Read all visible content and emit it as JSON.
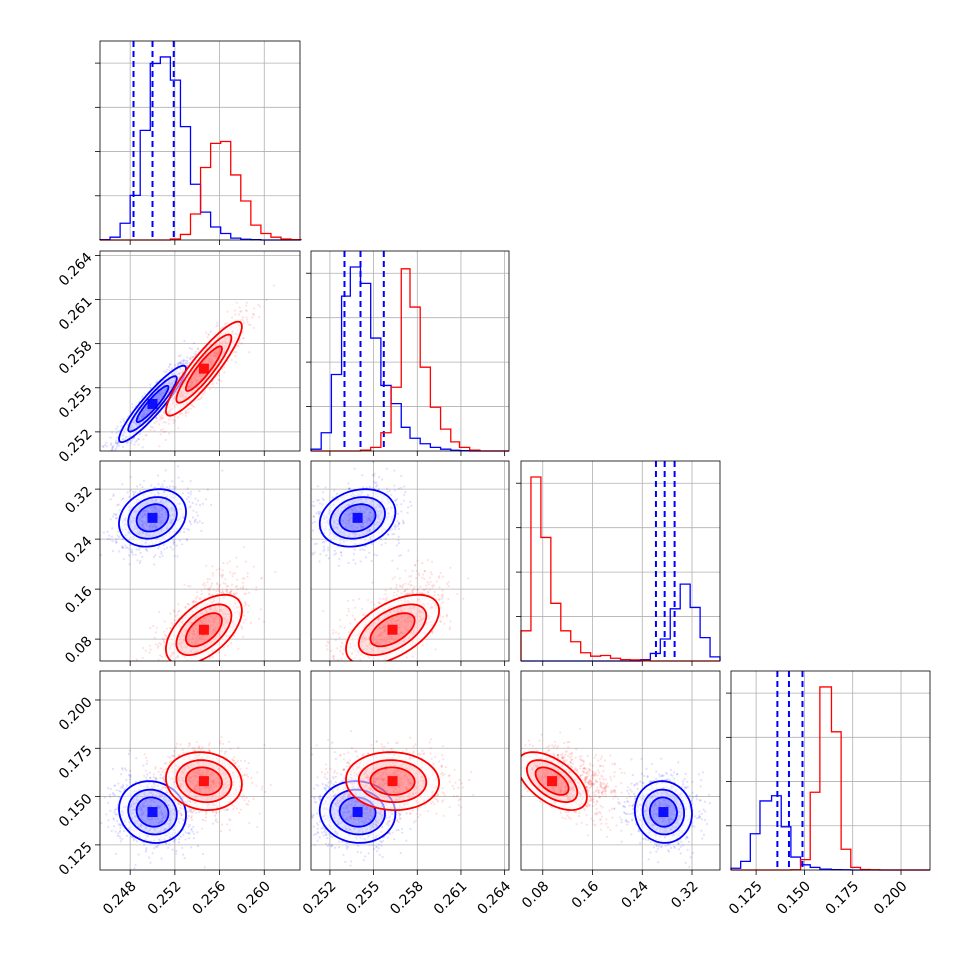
{
  "colors": {
    "sample_a": "#0000ff",
    "sample_b": "#ff0000",
    "grid": "#b0b0b0",
    "axis": "#000000"
  },
  "chart_data": {
    "type": "corner",
    "grid": true,
    "parameters": [
      {
        "range": [
          0.2453,
          0.2632
        ],
        "ticks": [
          "0.248",
          "0.252",
          "0.256",
          "0.260"
        ],
        "tick_values": [
          0.248,
          0.252,
          0.256,
          0.26
        ]
      },
      {
        "range": [
          0.2507,
          0.2643
        ],
        "ticks": [
          "0.252",
          "0.255",
          "0.258",
          "0.261",
          "0.264"
        ],
        "tick_values": [
          0.252,
          0.255,
          0.258,
          0.261,
          0.264
        ]
      },
      {
        "range": [
          0.045,
          0.365
        ],
        "ticks": [
          "0.08",
          "0.16",
          "0.24",
          "0.32"
        ],
        "tick_values": [
          0.08,
          0.16,
          0.24,
          0.32
        ]
      },
      {
        "range": [
          0.112,
          0.215
        ],
        "ticks": [
          "0.125",
          "0.150",
          "0.175",
          "0.200"
        ],
        "tick_values": [
          0.125,
          0.15,
          0.175,
          0.2
        ]
      }
    ],
    "series": [
      {
        "color": "#0000ff",
        "quantiles": [
          [
            0.2483,
            0.25,
            0.2519
          ],
          [
            0.253,
            0.2541,
            0.2557
          ],
          [
            0.262,
            0.276,
            0.292
          ],
          [
            0.136,
            0.142,
            0.149
          ]
        ],
        "means": [
          0.25,
          0.2539,
          0.274,
          0.142
        ],
        "stds": [
          0.0015,
          0.0013,
          0.023,
          0.008
        ],
        "hist_bins": [
          [
            0.2453,
            0.2462,
            0.2471,
            0.248,
            0.2489,
            0.2498,
            0.2507,
            0.2516,
            0.2525,
            0.2534,
            0.2543,
            0.2552,
            0.2561,
            0.257,
            0.2579,
            0.2588,
            0.2597,
            0.2606,
            0.2615,
            0.2624,
            0.2633
          ],
          [
            0.2507,
            0.2514,
            0.2521,
            0.2528,
            0.2534,
            0.2541,
            0.2548,
            0.2555,
            0.2562,
            0.2569,
            0.2575,
            0.2582,
            0.2589,
            0.2596,
            0.2603,
            0.2609,
            0.2616,
            0.2623,
            0.263,
            0.2637,
            0.2643
          ],
          [
            0.045,
            0.061,
            0.077,
            0.093,
            0.109,
            0.125,
            0.141,
            0.157,
            0.173,
            0.189,
            0.205,
            0.221,
            0.237,
            0.253,
            0.269,
            0.285,
            0.301,
            0.317,
            0.333,
            0.349,
            0.365
          ],
          [
            0.112,
            0.117,
            0.122,
            0.127,
            0.133,
            0.138,
            0.143,
            0.148,
            0.153,
            0.158,
            0.164,
            0.169,
            0.174,
            0.179,
            0.184,
            0.189,
            0.195,
            0.2,
            0.205,
            0.21,
            0.215
          ]
        ],
        "hist_counts": [
          [
            2,
            15,
            90,
            240,
            590,
            950,
            985,
            860,
            610,
            300,
            150,
            70,
            35,
            10,
            4,
            2,
            0,
            0,
            0,
            0
          ],
          [
            10,
            100,
            420,
            850,
            1010,
            920,
            620,
            360,
            260,
            130,
            70,
            40,
            20,
            10,
            4,
            2,
            0,
            0,
            0,
            0
          ],
          [
            0,
            0,
            0,
            0,
            0,
            0,
            0,
            0,
            0,
            0,
            0,
            0,
            10,
            55,
            160,
            380,
            560,
            390,
            170,
            30
          ],
          [
            10,
            50,
            210,
            400,
            430,
            250,
            75,
            30,
            15,
            5,
            2,
            1,
            0,
            0,
            0,
            0,
            0,
            0,
            0,
            0
          ]
        ]
      },
      {
        "color": "#ff0000",
        "quantiles": null,
        "means": [
          0.2546,
          0.2563,
          0.095,
          0.158
        ],
        "stds": [
          0.0017,
          0.0016,
          0.028,
          0.0075
        ],
        "hist_bins": [
          [
            0.2453,
            0.2462,
            0.2471,
            0.248,
            0.2489,
            0.2498,
            0.2507,
            0.2516,
            0.2525,
            0.2534,
            0.2543,
            0.2552,
            0.2561,
            0.257,
            0.2579,
            0.2588,
            0.2597,
            0.2606,
            0.2615,
            0.2624,
            0.2633
          ],
          [
            0.2507,
            0.2514,
            0.2521,
            0.2528,
            0.2534,
            0.2541,
            0.2548,
            0.2555,
            0.2562,
            0.2569,
            0.2575,
            0.2582,
            0.2589,
            0.2596,
            0.2603,
            0.2609,
            0.2616,
            0.2623,
            0.263,
            0.2637,
            0.2643
          ],
          [
            0.045,
            0.061,
            0.077,
            0.093,
            0.109,
            0.125,
            0.141,
            0.157,
            0.173,
            0.189,
            0.205,
            0.221,
            0.237,
            0.253,
            0.269,
            0.285,
            0.301,
            0.317,
            0.333,
            0.349,
            0.365
          ],
          [
            0.112,
            0.117,
            0.122,
            0.127,
            0.133,
            0.138,
            0.143,
            0.148,
            0.153,
            0.158,
            0.164,
            0.169,
            0.174,
            0.179,
            0.184,
            0.189,
            0.195,
            0.2,
            0.205,
            0.21,
            0.215
          ]
        ],
        "hist_counts": [
          [
            0,
            0,
            0,
            0,
            0,
            0,
            0,
            5,
            30,
            140,
            390,
            520,
            530,
            350,
            210,
            80,
            35,
            15,
            5,
            2
          ],
          [
            0,
            0,
            0,
            0,
            0,
            5,
            20,
            100,
            350,
            1000,
            790,
            460,
            240,
            120,
            50,
            20,
            5,
            0,
            0,
            0
          ],
          [
            220,
            1340,
            900,
            420,
            220,
            140,
            60,
            35,
            40,
            20,
            10,
            8,
            5,
            0,
            0,
            0,
            0,
            0,
            0,
            0
          ],
          [
            0,
            0,
            0,
            0,
            0,
            0,
            1,
            60,
            450,
            1060,
            800,
            120,
            15,
            3,
            1,
            0,
            0,
            0,
            0,
            0
          ]
        ]
      }
    ],
    "correlations": {
      "sample_a": {
        "1,0": 0.92,
        "2,0": 0.2,
        "2,1": 0.2,
        "3,0": -0.1,
        "3,1": -0.05,
        "3,2": -0.05
      },
      "sample_b": {
        "1,0": 0.9,
        "2,0": 0.55,
        "2,1": 0.55,
        "3,0": -0.1,
        "3,1": -0.05,
        "3,2": -0.55
      }
    }
  }
}
